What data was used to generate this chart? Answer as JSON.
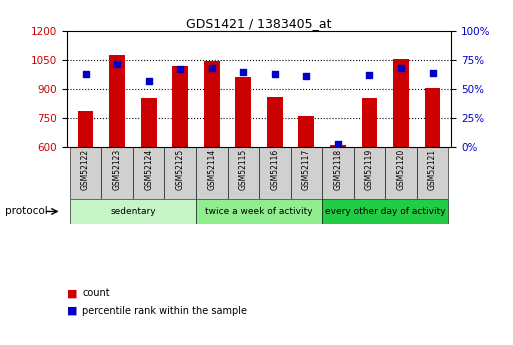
{
  "title": "GDS1421 / 1383405_at",
  "samples": [
    "GSM52122",
    "GSM52123",
    "GSM52124",
    "GSM52125",
    "GSM52114",
    "GSM52115",
    "GSM52116",
    "GSM52117",
    "GSM52118",
    "GSM52119",
    "GSM52120",
    "GSM52121"
  ],
  "counts": [
    790,
    1075,
    855,
    1020,
    1045,
    965,
    860,
    762,
    612,
    855,
    1055,
    908
  ],
  "percentile_ranks": [
    63,
    72,
    57,
    67,
    68,
    65,
    63,
    61,
    3,
    62,
    68,
    64
  ],
  "ylim_left": [
    600,
    1200
  ],
  "ylim_right": [
    0,
    100
  ],
  "yticks_left": [
    600,
    750,
    900,
    1050,
    1200
  ],
  "yticks_right": [
    0,
    25,
    50,
    75,
    100
  ],
  "groups": [
    {
      "label": "sedentary",
      "indices": [
        0,
        1,
        2,
        3
      ],
      "color": "#c8f5c8"
    },
    {
      "label": "twice a week of activity",
      "indices": [
        4,
        5,
        6,
        7
      ],
      "color": "#90ee90"
    },
    {
      "label": "every other day of activity",
      "indices": [
        8,
        9,
        10,
        11
      ],
      "color": "#22cc44"
    }
  ],
  "bar_color": "#cc0000",
  "dot_color": "#0000cc",
  "bar_bottom": 600,
  "sample_box_color": "#d0d0d0",
  "legend_items": [
    {
      "label": "count",
      "color": "#cc0000"
    },
    {
      "label": "percentile rank within the sample",
      "color": "#0000cc"
    }
  ],
  "protocol_label": "protocol",
  "tick_label_color_left": "#cc0000",
  "tick_label_color_right": "#0000cc",
  "bg_color": "#ffffff",
  "plot_bg": "#ffffff",
  "gridline_ticks": [
    750,
    900,
    1050
  ]
}
